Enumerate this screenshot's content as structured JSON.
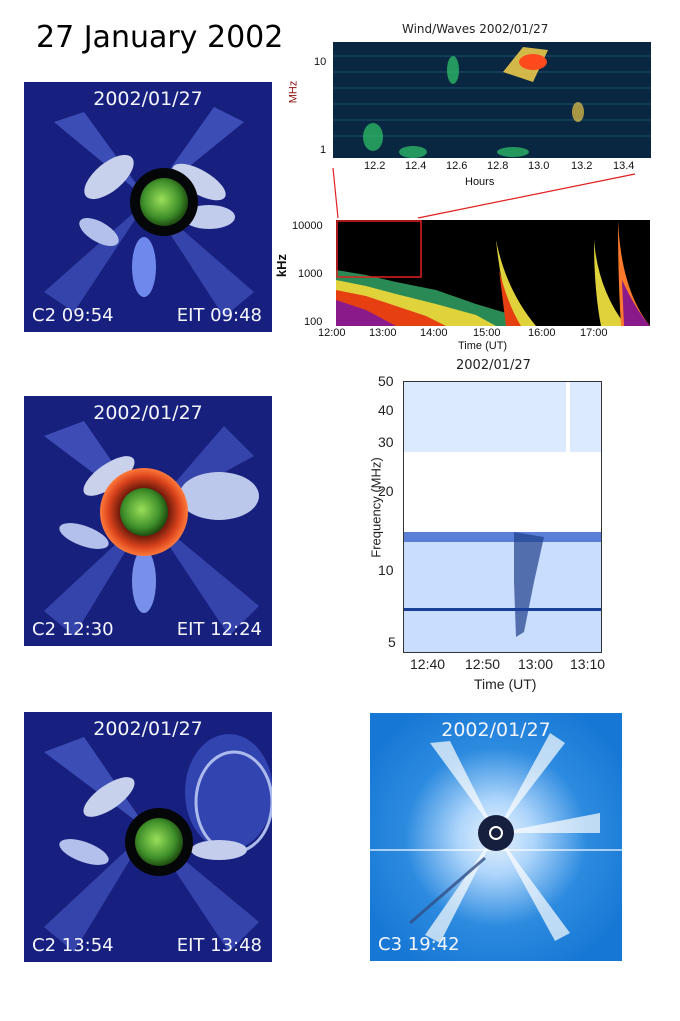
{
  "page_title": "27 January 2002",
  "panels": {
    "c2_1": {
      "date": "2002/01/27",
      "left_label": "C2 09:54",
      "right_label": "EIT 09:48"
    },
    "c2_2": {
      "date": "2002/01/27",
      "left_label": "C2 12:30",
      "right_label": "EIT 12:24"
    },
    "c2_3": {
      "date": "2002/01/27",
      "left_label": "C2 13:54",
      "right_label": "EIT 13:48"
    },
    "c3": {
      "date": "2002/01/27",
      "left_label": "C3 19:42"
    }
  },
  "wind_waves_top": {
    "title": "Wind/Waves 2002/01/27",
    "ylabel": "MHz",
    "yticks": [
      "10",
      "1"
    ],
    "xlabel": "Hours",
    "xticks": [
      "12.2",
      "12.4",
      "12.6",
      "12.8",
      "13.0",
      "13.2",
      "13.4"
    ]
  },
  "wind_waves_bottom": {
    "ylabel": "kHz",
    "yticks": [
      "10000",
      "1000",
      "100"
    ],
    "xlabel": "Time (UT)",
    "xticks": [
      "12:00",
      "13:00",
      "14:00",
      "15:00",
      "16:00",
      "17:00"
    ]
  },
  "radio_spectrum": {
    "title": "2002/01/27",
    "ylabel": "Frequency (MHz)",
    "yticks": [
      "50",
      "40",
      "30",
      "20",
      "10",
      "5"
    ],
    "xlabel": "Time (UT)",
    "xticks": [
      "12:40",
      "12:50",
      "13:00",
      "13:10"
    ]
  }
}
